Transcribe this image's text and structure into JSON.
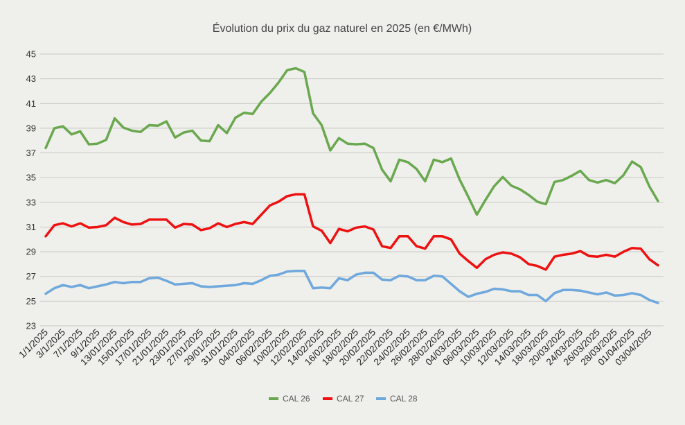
{
  "chart_data": {
    "type": "line",
    "title": "Évolution du prix du gaz naturel en 2025 (en €/MWh)",
    "xlabel": "",
    "ylabel": "",
    "ylim": [
      23,
      45
    ],
    "yticks": [
      23,
      25,
      27,
      29,
      31,
      33,
      35,
      37,
      39,
      41,
      43,
      45
    ],
    "grid": true,
    "legend_position": "bottom",
    "x": [
      "1/1/2025",
      "2/1/2025",
      "3/1/2025",
      "6/1/2025",
      "7/1/2025",
      "8/1/2025",
      "9/1/2025",
      "10/1/2025",
      "13/01/2025",
      "14/01/2025",
      "15/01/2025",
      "16/01/2025",
      "17/01/2025",
      "20/01/2025",
      "21/01/2025",
      "22/01/2025",
      "23/01/2025",
      "24/01/2025",
      "27/01/2025",
      "28/01/2025",
      "29/01/2025",
      "30/01/2025",
      "31/01/2025",
      "03/02/2025",
      "04/02/2025",
      "05/02/2025",
      "06/02/2025",
      "07/02/2025",
      "10/02/2025",
      "11/02/2025",
      "12/02/2025",
      "13/02/2025",
      "14/02/2025",
      "15/02/2025",
      "16/02/2025",
      "17/02/2025",
      "18/02/2025",
      "19/02/2025",
      "20/02/2025",
      "21/02/2025",
      "22/02/2025",
      "23/02/2025",
      "24/02/2025",
      "25/02/2025",
      "26/02/2025",
      "27/02/2025",
      "28/02/2025",
      "03/03/2025",
      "04/03/2025",
      "05/03/2025",
      "06/03/2025",
      "07/03/2025",
      "10/03/2025",
      "11/03/2025",
      "12/03/2025",
      "13/03/2025",
      "14/03/2025",
      "17/03/2025",
      "18/03/2025",
      "19/03/2025",
      "20/03/2025",
      "21/03/2025",
      "24/03/2025",
      "25/03/2025",
      "26/03/2025",
      "27/03/2025",
      "28/03/2025",
      "31/03/2025",
      "01/04/2025",
      "02/04/2025",
      "03/04/2025",
      "04/04/2025"
    ],
    "tick_labels": [
      "1/1/2025",
      "3/1/2025",
      "7/1/2025",
      "9/1/2025",
      "13/01/2025",
      "15/01/2025",
      "17/01/2025",
      "21/01/2025",
      "23/01/2025",
      "27/01/2025",
      "29/01/2025",
      "31/01/2025",
      "04/02/2025",
      "06/02/2025",
      "10/02/2025",
      "12/02/2025",
      "14/02/2025",
      "16/02/2025",
      "18/02/2025",
      "20/02/2025",
      "22/02/2025",
      "24/02/2025",
      "26/02/2025",
      "28/02/2025",
      "04/03/2025",
      "06/03/2025",
      "10/03/2025",
      "12/03/2025",
      "14/03/2025",
      "18/03/2025",
      "20/03/2025",
      "24/03/2025",
      "26/03/2025",
      "28/03/2025",
      "01/04/2025",
      "03/04/2025"
    ],
    "series": [
      {
        "name": "CAL 26",
        "color": "#6aa84f",
        "values": [
          37.4,
          39.0,
          39.15,
          38.5,
          38.75,
          37.7,
          37.75,
          38.05,
          39.8,
          39.05,
          38.8,
          38.7,
          39.25,
          39.2,
          39.55,
          38.25,
          38.65,
          38.8,
          38.0,
          37.95,
          39.25,
          38.6,
          39.85,
          40.25,
          40.15,
          41.15,
          41.85,
          42.7,
          43.7,
          43.85,
          43.55,
          40.2,
          39.25,
          37.2,
          38.2,
          37.75,
          37.7,
          37.75,
          37.4,
          35.65,
          34.7,
          36.45,
          36.25,
          35.7,
          34.7,
          36.45,
          36.25,
          36.55,
          34.85,
          33.45,
          32.0,
          33.2,
          34.3,
          35.05,
          34.35,
          34.05,
          33.6,
          33.05,
          32.85,
          34.65,
          34.8,
          35.15,
          35.55,
          34.8,
          34.6,
          34.8,
          34.55,
          35.2,
          36.3,
          35.85,
          34.3,
          33.1
        ]
      },
      {
        "name": "CAL 27",
        "color": "#ee1111",
        "values": [
          30.25,
          31.15,
          31.3,
          31.05,
          31.3,
          30.95,
          31.0,
          31.15,
          31.75,
          31.4,
          31.2,
          31.25,
          31.6,
          31.6,
          31.6,
          30.95,
          31.25,
          31.2,
          30.75,
          30.9,
          31.3,
          31.0,
          31.25,
          31.4,
          31.25,
          32.0,
          32.75,
          33.05,
          33.5,
          33.65,
          33.65,
          31.05,
          30.7,
          29.7,
          30.85,
          30.65,
          30.95,
          31.05,
          30.8,
          29.45,
          29.3,
          30.25,
          30.25,
          29.45,
          29.25,
          30.25,
          30.25,
          30.0,
          28.85,
          28.25,
          27.7,
          28.4,
          28.75,
          28.95,
          28.85,
          28.55,
          28.0,
          27.85,
          27.55,
          28.6,
          28.75,
          28.85,
          29.05,
          28.65,
          28.6,
          28.75,
          28.6,
          29.0,
          29.3,
          29.25,
          28.4,
          27.9
        ]
      },
      {
        "name": "CAL 28",
        "color": "#6fa8dc",
        "values": [
          25.6,
          26.05,
          26.3,
          26.15,
          26.3,
          26.05,
          26.2,
          26.35,
          26.55,
          26.45,
          26.55,
          26.55,
          26.85,
          26.9,
          26.65,
          26.35,
          26.4,
          26.45,
          26.2,
          26.15,
          26.2,
          26.25,
          26.3,
          26.45,
          26.4,
          26.7,
          27.05,
          27.15,
          27.4,
          27.45,
          27.45,
          26.05,
          26.1,
          26.05,
          26.85,
          26.7,
          27.15,
          27.3,
          27.3,
          26.75,
          26.7,
          27.05,
          27.0,
          26.7,
          26.7,
          27.05,
          27.0,
          26.4,
          25.8,
          25.35,
          25.6,
          25.75,
          26.0,
          25.95,
          25.8,
          25.8,
          25.5,
          25.5,
          25.0,
          25.65,
          25.9,
          25.9,
          25.85,
          25.7,
          25.55,
          25.7,
          25.45,
          25.5,
          25.65,
          25.5,
          25.1,
          24.85
        ]
      }
    ]
  }
}
